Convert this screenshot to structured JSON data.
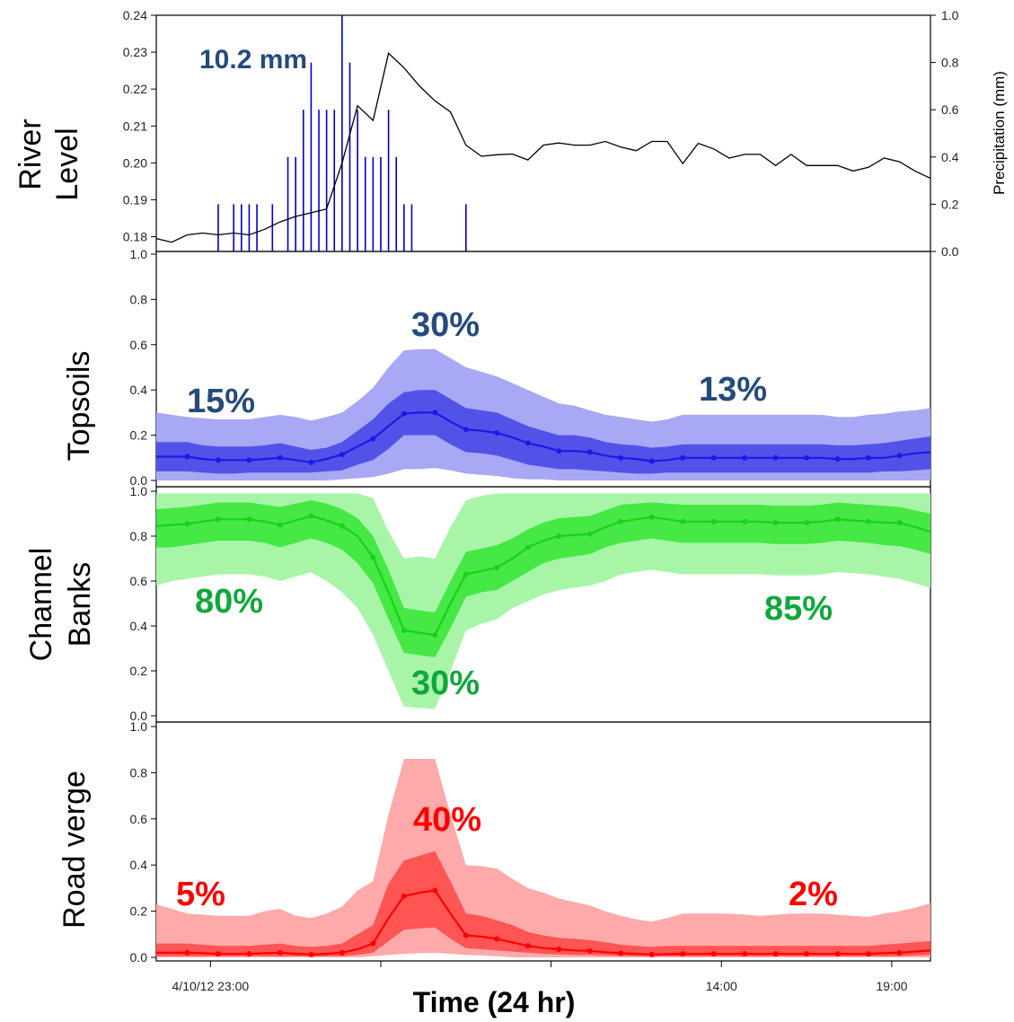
{
  "chart_data": [
    {
      "type": "line",
      "panel": "river",
      "title": "",
      "ylabel": [
        "River",
        "Level"
      ],
      "ylabel_right": "Precipitation (mm)",
      "ylim": [
        0.176,
        0.24
      ],
      "yticks": [
        "0.18",
        "0.19",
        "0.20",
        "0.21",
        "0.22",
        "0.23",
        "0.24"
      ],
      "ylim_right": [
        0,
        1.0
      ],
      "yticks_right": [
        "0.0",
        "0.2",
        "0.4",
        "0.6",
        "0.8",
        "1.0"
      ],
      "annotation": "10.2 mm",
      "xlim": [
        0,
        50
      ],
      "series": [
        {
          "kind": "line",
          "color": "#000000",
          "x": [
            0,
            1,
            2,
            3,
            4,
            5,
            6,
            7,
            8,
            9,
            10,
            11,
            12,
            13,
            14,
            15,
            16,
            17,
            18,
            19,
            20,
            21,
            22,
            23,
            24,
            25,
            26,
            27,
            28,
            29,
            30,
            31,
            32,
            33,
            34,
            35,
            36,
            37,
            38,
            39,
            40,
            41,
            42,
            43,
            44,
            45,
            46,
            47,
            48,
            49,
            50
          ],
          "y": [
            0.1795,
            0.1785,
            0.1805,
            0.181,
            0.1805,
            0.181,
            0.1805,
            0.182,
            0.184,
            0.1855,
            0.1865,
            0.1875,
            0.2,
            0.2155,
            0.2115,
            0.2297,
            0.2258,
            0.2208,
            0.2168,
            0.2138,
            0.2048,
            0.2018,
            0.2022,
            0.2024,
            0.2008,
            0.2048,
            0.2054,
            0.2048,
            0.2048,
            0.2058,
            0.2043,
            0.2033,
            0.2058,
            0.2058,
            0.1998,
            0.2053,
            0.2038,
            0.2013,
            0.2023,
            0.2023,
            0.1993,
            0.2023,
            0.1993,
            0.1993,
            0.1993,
            0.1978,
            0.1988,
            0.2013,
            0.2003,
            0.1978,
            0.1958
          ]
        },
        {
          "kind": "precip",
          "color": "#0000cc",
          "x": [
            4.0,
            5.0,
            5.5,
            6.0,
            6.5,
            7.5,
            8.5,
            9.0,
            9.5,
            10.0,
            10.5,
            11.0,
            11.5,
            12.0,
            12.5,
            13.0,
            13.5,
            14.0,
            14.5,
            15.0,
            15.5,
            16.0,
            16.5,
            20.0
          ],
          "y": [
            0.2,
            0.2,
            0.2,
            0.2,
            0.2,
            0.2,
            0.4,
            0.4,
            0.6,
            0.8,
            0.6,
            0.6,
            0.6,
            1.0,
            0.8,
            0.6,
            0.4,
            0.4,
            0.4,
            0.6,
            0.4,
            0.2,
            0.2,
            0.2
          ]
        }
      ]
    },
    {
      "type": "area",
      "panel": "topsoils",
      "title": "",
      "ylabel": "Topsoils",
      "ylim": [
        0,
        1.0
      ],
      "yticks": [
        "0.0",
        "0.2",
        "0.4",
        "0.6",
        "0.8",
        "1.0"
      ],
      "color": "#1a1ae6",
      "band_outer_color": "#a8a8f5",
      "band_inner_color": "#5252e8",
      "x": [
        0,
        1,
        2,
        3,
        4,
        5,
        6,
        7,
        8,
        9,
        10,
        11,
        12,
        13,
        14,
        15,
        16,
        17,
        18,
        19,
        20,
        21,
        22,
        23,
        24,
        25,
        26,
        27,
        28,
        29,
        30,
        31,
        32,
        33,
        34,
        35,
        36,
        37,
        38,
        39,
        40,
        41,
        42,
        43,
        44,
        45,
        46,
        47,
        48,
        49,
        50
      ],
      "median": [
        0.105,
        0.105,
        0.105,
        0.095,
        0.09,
        0.09,
        0.09,
        0.095,
        0.1,
        0.09,
        0.08,
        0.095,
        0.115,
        0.15,
        0.185,
        0.24,
        0.295,
        0.3,
        0.3,
        0.26,
        0.225,
        0.22,
        0.21,
        0.19,
        0.165,
        0.15,
        0.13,
        0.13,
        0.125,
        0.11,
        0.1,
        0.095,
        0.085,
        0.09,
        0.1,
        0.1,
        0.1,
        0.1,
        0.1,
        0.1,
        0.1,
        0.1,
        0.1,
        0.1,
        0.095,
        0.095,
        0.1,
        0.1,
        0.11,
        0.12,
        0.125
      ],
      "inner_low": [
        0.04,
        0.04,
        0.04,
        0.035,
        0.03,
        0.03,
        0.035,
        0.035,
        0.035,
        0.035,
        0.035,
        0.04,
        0.045,
        0.07,
        0.09,
        0.14,
        0.2,
        0.2,
        0.2,
        0.16,
        0.125,
        0.12,
        0.11,
        0.09,
        0.07,
        0.06,
        0.05,
        0.05,
        0.045,
        0.04,
        0.035,
        0.03,
        0.03,
        0.035,
        0.035,
        0.035,
        0.035,
        0.035,
        0.035,
        0.035,
        0.035,
        0.035,
        0.035,
        0.035,
        0.035,
        0.035,
        0.035,
        0.04,
        0.04,
        0.045,
        0.05
      ],
      "inner_high": [
        0.17,
        0.17,
        0.17,
        0.155,
        0.15,
        0.15,
        0.15,
        0.155,
        0.165,
        0.15,
        0.135,
        0.145,
        0.17,
        0.22,
        0.27,
        0.34,
        0.39,
        0.4,
        0.4,
        0.36,
        0.32,
        0.31,
        0.3,
        0.27,
        0.24,
        0.22,
        0.2,
        0.2,
        0.19,
        0.17,
        0.16,
        0.155,
        0.145,
        0.15,
        0.16,
        0.16,
        0.16,
        0.16,
        0.16,
        0.16,
        0.16,
        0.16,
        0.16,
        0.16,
        0.155,
        0.155,
        0.16,
        0.165,
        0.175,
        0.185,
        0.195
      ],
      "outer_low": [
        0.0,
        0.0,
        0.0,
        0.0,
        0.0,
        0.0,
        0.0,
        0.0,
        0.0,
        0.0,
        0.0,
        0.0,
        0.005,
        0.01,
        0.015,
        0.03,
        0.05,
        0.05,
        0.055,
        0.045,
        0.03,
        0.025,
        0.02,
        0.01,
        0.005,
        0.005,
        0.0,
        0.0,
        0.0,
        0.0,
        0.0,
        0.0,
        0.0,
        0.0,
        0.0,
        0.0,
        0.0,
        0.0,
        0.0,
        0.0,
        0.0,
        0.0,
        0.0,
        0.0,
        0.0,
        0.0,
        0.0,
        0.0,
        0.0,
        0.0,
        0.0
      ],
      "outer_high": [
        0.3,
        0.29,
        0.28,
        0.275,
        0.27,
        0.27,
        0.27,
        0.28,
        0.29,
        0.28,
        0.265,
        0.28,
        0.3,
        0.35,
        0.41,
        0.5,
        0.575,
        0.58,
        0.58,
        0.54,
        0.5,
        0.48,
        0.46,
        0.43,
        0.4,
        0.37,
        0.34,
        0.33,
        0.31,
        0.29,
        0.28,
        0.27,
        0.26,
        0.27,
        0.29,
        0.29,
        0.29,
        0.29,
        0.29,
        0.29,
        0.29,
        0.29,
        0.29,
        0.29,
        0.28,
        0.28,
        0.29,
        0.295,
        0.305,
        0.31,
        0.32
      ],
      "annotations": [
        "15%",
        "30%",
        "13%"
      ],
      "annotation_color": "#254a7c"
    },
    {
      "type": "area",
      "panel": "banks",
      "title": "",
      "ylabel": [
        "Channel",
        "Banks"
      ],
      "ylim": [
        0,
        1.0
      ],
      "yticks": [
        "0.0",
        "0.2",
        "0.4",
        "0.6",
        "0.8",
        "1.0"
      ],
      "color": "#19d119",
      "band_outer_color": "#a8f5a8",
      "band_inner_color": "#45e845",
      "x": [
        0,
        1,
        2,
        3,
        4,
        5,
        6,
        7,
        8,
        9,
        10,
        11,
        12,
        13,
        14,
        15,
        16,
        17,
        18,
        19,
        20,
        21,
        22,
        23,
        24,
        25,
        26,
        27,
        28,
        29,
        30,
        31,
        32,
        33,
        34,
        35,
        36,
        37,
        38,
        39,
        40,
        41,
        42,
        43,
        44,
        45,
        46,
        47,
        48,
        49,
        50
      ],
      "median": [
        0.845,
        0.85,
        0.855,
        0.865,
        0.875,
        0.875,
        0.875,
        0.865,
        0.85,
        0.87,
        0.89,
        0.87,
        0.845,
        0.8,
        0.705,
        0.55,
        0.38,
        0.37,
        0.36,
        0.5,
        0.63,
        0.645,
        0.66,
        0.7,
        0.75,
        0.78,
        0.8,
        0.805,
        0.81,
        0.84,
        0.865,
        0.875,
        0.885,
        0.875,
        0.865,
        0.865,
        0.865,
        0.865,
        0.865,
        0.865,
        0.86,
        0.86,
        0.86,
        0.865,
        0.875,
        0.87,
        0.865,
        0.86,
        0.86,
        0.84,
        0.82
      ],
      "inner_low": [
        0.75,
        0.75,
        0.76,
        0.77,
        0.78,
        0.78,
        0.78,
        0.77,
        0.75,
        0.77,
        0.79,
        0.77,
        0.74,
        0.68,
        0.59,
        0.43,
        0.28,
        0.27,
        0.26,
        0.39,
        0.53,
        0.55,
        0.56,
        0.6,
        0.64,
        0.68,
        0.7,
        0.71,
        0.72,
        0.75,
        0.77,
        0.78,
        0.79,
        0.78,
        0.77,
        0.77,
        0.77,
        0.77,
        0.77,
        0.77,
        0.765,
        0.765,
        0.765,
        0.77,
        0.78,
        0.775,
        0.77,
        0.76,
        0.755,
        0.74,
        0.72
      ],
      "inner_high": [
        0.92,
        0.925,
        0.93,
        0.94,
        0.95,
        0.95,
        0.95,
        0.94,
        0.93,
        0.945,
        0.96,
        0.945,
        0.92,
        0.88,
        0.8,
        0.65,
        0.48,
        0.47,
        0.46,
        0.6,
        0.73,
        0.745,
        0.76,
        0.79,
        0.83,
        0.86,
        0.88,
        0.885,
        0.89,
        0.915,
        0.94,
        0.945,
        0.95,
        0.945,
        0.94,
        0.94,
        0.94,
        0.94,
        0.94,
        0.94,
        0.935,
        0.935,
        0.935,
        0.94,
        0.95,
        0.945,
        0.94,
        0.935,
        0.93,
        0.915,
        0.9
      ],
      "outer_low": [
        0.58,
        0.6,
        0.61,
        0.62,
        0.63,
        0.63,
        0.63,
        0.62,
        0.6,
        0.62,
        0.64,
        0.6,
        0.55,
        0.48,
        0.36,
        0.2,
        0.04,
        0.035,
        0.03,
        0.2,
        0.38,
        0.41,
        0.43,
        0.48,
        0.51,
        0.54,
        0.56,
        0.57,
        0.58,
        0.6,
        0.63,
        0.64,
        0.65,
        0.64,
        0.63,
        0.63,
        0.63,
        0.63,
        0.63,
        0.63,
        0.625,
        0.625,
        0.625,
        0.63,
        0.64,
        0.635,
        0.63,
        0.62,
        0.61,
        0.59,
        0.57
      ],
      "outer_high": [
        0.99,
        0.99,
        0.99,
        0.99,
        0.99,
        0.99,
        0.99,
        0.99,
        0.99,
        0.99,
        0.99,
        0.99,
        0.99,
        0.99,
        0.97,
        0.82,
        0.7,
        0.71,
        0.7,
        0.84,
        0.96,
        0.98,
        0.99,
        0.99,
        0.99,
        0.99,
        0.99,
        0.99,
        0.99,
        0.99,
        0.99,
        0.99,
        0.99,
        0.99,
        0.99,
        0.99,
        0.99,
        0.99,
        0.99,
        0.99,
        0.99,
        0.99,
        0.99,
        0.99,
        0.99,
        0.99,
        0.99,
        0.99,
        0.99,
        0.99,
        0.99
      ],
      "annotations": [
        "80%",
        "30%",
        "85%"
      ],
      "annotation_color": "#0fa83a"
    },
    {
      "type": "area",
      "panel": "road",
      "title": "",
      "ylabel": "Road verge",
      "ylim": [
        0,
        1.0
      ],
      "yticks": [
        "0.0",
        "0.2",
        "0.4",
        "0.6",
        "0.8",
        "1.0"
      ],
      "color": "#ff0000",
      "band_outer_color": "#ffaaaa",
      "band_inner_color": "#ff5555",
      "x": [
        0,
        1,
        2,
        3,
        4,
        5,
        6,
        7,
        8,
        9,
        10,
        11,
        12,
        13,
        14,
        15,
        16,
        17,
        18,
        19,
        20,
        21,
        22,
        23,
        24,
        25,
        26,
        27,
        28,
        29,
        30,
        31,
        32,
        33,
        34,
        35,
        36,
        37,
        38,
        39,
        40,
        41,
        42,
        43,
        44,
        45,
        46,
        47,
        48,
        49,
        50
      ],
      "median": [
        0.02,
        0.02,
        0.02,
        0.018,
        0.015,
        0.015,
        0.015,
        0.018,
        0.02,
        0.015,
        0.012,
        0.015,
        0.02,
        0.035,
        0.06,
        0.17,
        0.265,
        0.28,
        0.29,
        0.19,
        0.095,
        0.09,
        0.08,
        0.065,
        0.05,
        0.04,
        0.035,
        0.03,
        0.028,
        0.022,
        0.018,
        0.015,
        0.012,
        0.014,
        0.015,
        0.015,
        0.015,
        0.015,
        0.015,
        0.015,
        0.015,
        0.015,
        0.015,
        0.015,
        0.015,
        0.015,
        0.015,
        0.018,
        0.02,
        0.025,
        0.03
      ],
      "inner_low": [
        0.005,
        0.005,
        0.005,
        0.005,
        0.005,
        0.005,
        0.005,
        0.005,
        0.005,
        0.005,
        0.005,
        0.005,
        0.005,
        0.01,
        0.02,
        0.07,
        0.12,
        0.125,
        0.13,
        0.08,
        0.04,
        0.035,
        0.03,
        0.025,
        0.02,
        0.015,
        0.012,
        0.01,
        0.01,
        0.008,
        0.006,
        0.005,
        0.005,
        0.005,
        0.005,
        0.005,
        0.005,
        0.005,
        0.005,
        0.005,
        0.005,
        0.005,
        0.005,
        0.005,
        0.005,
        0.005,
        0.005,
        0.005,
        0.005,
        0.008,
        0.01
      ],
      "inner_high": [
        0.06,
        0.06,
        0.06,
        0.055,
        0.05,
        0.05,
        0.05,
        0.055,
        0.06,
        0.05,
        0.045,
        0.05,
        0.06,
        0.1,
        0.14,
        0.32,
        0.42,
        0.44,
        0.46,
        0.33,
        0.19,
        0.18,
        0.16,
        0.14,
        0.11,
        0.095,
        0.085,
        0.08,
        0.075,
        0.065,
        0.055,
        0.05,
        0.045,
        0.05,
        0.05,
        0.05,
        0.05,
        0.05,
        0.05,
        0.05,
        0.05,
        0.05,
        0.05,
        0.05,
        0.05,
        0.05,
        0.05,
        0.055,
        0.06,
        0.065,
        0.07
      ],
      "outer_low": [
        0.0,
        0.0,
        0.0,
        0.0,
        0.0,
        0.0,
        0.0,
        0.0,
        0.0,
        0.0,
        0.0,
        0.0,
        0.0,
        0.0,
        0.005,
        0.01,
        0.015,
        0.018,
        0.02,
        0.015,
        0.01,
        0.008,
        0.005,
        0.0,
        0.0,
        0.0,
        0.0,
        0.0,
        0.0,
        0.0,
        0.0,
        0.0,
        0.0,
        0.0,
        0.0,
        0.0,
        0.0,
        0.0,
        0.0,
        0.0,
        0.0,
        0.0,
        0.0,
        0.0,
        0.0,
        0.0,
        0.0,
        0.0,
        0.0,
        0.0,
        0.0
      ],
      "outer_high": [
        0.23,
        0.21,
        0.19,
        0.185,
        0.18,
        0.18,
        0.18,
        0.2,
        0.21,
        0.18,
        0.17,
        0.19,
        0.22,
        0.29,
        0.33,
        0.62,
        0.86,
        0.86,
        0.86,
        0.62,
        0.4,
        0.395,
        0.385,
        0.34,
        0.3,
        0.28,
        0.255,
        0.24,
        0.225,
        0.2,
        0.18,
        0.165,
        0.155,
        0.17,
        0.19,
        0.19,
        0.19,
        0.19,
        0.185,
        0.18,
        0.185,
        0.19,
        0.19,
        0.19,
        0.185,
        0.18,
        0.175,
        0.19,
        0.2,
        0.215,
        0.235
      ],
      "annotations": [
        "5%",
        "40%",
        "2%"
      ],
      "annotation_color": "#ff0000"
    }
  ],
  "xaxis": {
    "title": "Time (24 hr)",
    "tick_positions": [
      3.5,
      14.5,
      25.5,
      36.5,
      47.5
    ],
    "tick_labels": [
      "4/10/12 23:00",
      "",
      "",
      "14:00",
      "19:00"
    ]
  }
}
